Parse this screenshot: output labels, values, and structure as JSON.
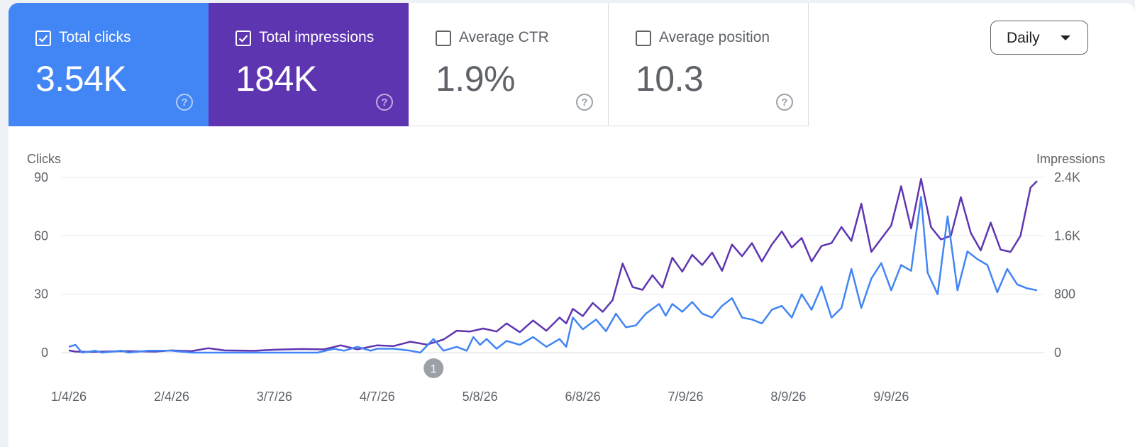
{
  "cards": [
    {
      "label": "Total clicks",
      "value": "3.54K",
      "checked": true,
      "color": "#4285f4"
    },
    {
      "label": "Total impressions",
      "value": "184K",
      "checked": true,
      "color": "#5e35b1"
    },
    {
      "label": "Average CTR",
      "value": "1.9%",
      "checked": false
    },
    {
      "label": "Average position",
      "value": "10.3",
      "checked": false
    }
  ],
  "help_glyph": "?",
  "dropdown": {
    "label": "Daily"
  },
  "chart_data": {
    "type": "line",
    "start_date": "2026-01-04",
    "x_tick_labels": [
      "1/4/26",
      "2/4/26",
      "3/7/26",
      "4/7/26",
      "5/8/26",
      "6/8/26",
      "7/9/26",
      "8/9/26",
      "9/9/26"
    ],
    "x_tick_dates": [
      "2026-01-04",
      "2026-02-04",
      "2026-03-07",
      "2026-04-07",
      "2026-05-08",
      "2026-06-08",
      "2026-07-09",
      "2026-08-09",
      "2026-09-09"
    ],
    "left_axis": {
      "label": "Clicks",
      "range": [
        0,
        90
      ],
      "ticks": [
        0,
        30,
        60,
        90
      ],
      "tick_labels": [
        "0",
        "30",
        "60",
        "90"
      ]
    },
    "right_axis": {
      "label": "Impressions",
      "range": [
        0,
        2400
      ],
      "ticks": [
        0,
        800,
        1600,
        2400
      ],
      "tick_labels": [
        "0",
        "800",
        "1.6K",
        "2.4K"
      ]
    },
    "grid": true,
    "annotations": [
      {
        "date": "2026-04-24",
        "label": "1"
      }
    ],
    "series": [
      {
        "axis": "left",
        "color": "#4285f4",
        "points": [
          [
            "2026-01-04",
            3
          ],
          [
            "2026-01-06",
            4
          ],
          [
            "2026-01-08",
            0
          ],
          [
            "2026-01-12",
            1
          ],
          [
            "2026-01-14",
            0
          ],
          [
            "2026-01-20",
            1
          ],
          [
            "2026-01-22",
            0
          ],
          [
            "2026-01-28",
            1
          ],
          [
            "2026-02-04",
            1
          ],
          [
            "2026-02-10",
            0
          ],
          [
            "2026-03-07",
            0
          ],
          [
            "2026-03-20",
            0
          ],
          [
            "2026-03-25",
            2
          ],
          [
            "2026-03-28",
            1
          ],
          [
            "2026-04-01",
            3
          ],
          [
            "2026-04-05",
            1
          ],
          [
            "2026-04-07",
            2
          ],
          [
            "2026-04-12",
            2
          ],
          [
            "2026-04-17",
            1
          ],
          [
            "2026-04-20",
            0
          ],
          [
            "2026-04-24",
            7
          ],
          [
            "2026-04-27",
            1
          ],
          [
            "2026-05-01",
            3
          ],
          [
            "2026-05-04",
            1
          ],
          [
            "2026-05-06",
            8
          ],
          [
            "2026-05-08",
            4
          ],
          [
            "2026-05-10",
            7
          ],
          [
            "2026-05-13",
            2
          ],
          [
            "2026-05-16",
            6
          ],
          [
            "2026-05-20",
            4
          ],
          [
            "2026-05-24",
            8
          ],
          [
            "2026-05-28",
            3
          ],
          [
            "2026-06-01",
            7
          ],
          [
            "2026-06-03",
            3
          ],
          [
            "2026-06-05",
            18
          ],
          [
            "2026-06-08",
            12
          ],
          [
            "2026-06-12",
            17
          ],
          [
            "2026-06-15",
            11
          ],
          [
            "2026-06-18",
            20
          ],
          [
            "2026-06-21",
            13
          ],
          [
            "2026-06-24",
            14
          ],
          [
            "2026-06-27",
            20
          ],
          [
            "2026-07-01",
            25
          ],
          [
            "2026-07-03",
            19
          ],
          [
            "2026-07-05",
            25
          ],
          [
            "2026-07-08",
            21
          ],
          [
            "2026-07-11",
            26
          ],
          [
            "2026-07-14",
            20
          ],
          [
            "2026-07-17",
            18
          ],
          [
            "2026-07-20",
            24
          ],
          [
            "2026-07-23",
            28
          ],
          [
            "2026-07-26",
            18
          ],
          [
            "2026-07-29",
            17
          ],
          [
            "2026-08-01",
            15
          ],
          [
            "2026-08-04",
            22
          ],
          [
            "2026-08-07",
            24
          ],
          [
            "2026-08-10",
            18
          ],
          [
            "2026-08-13",
            30
          ],
          [
            "2026-08-16",
            22
          ],
          [
            "2026-08-19",
            34
          ],
          [
            "2026-08-22",
            18
          ],
          [
            "2026-08-25",
            23
          ],
          [
            "2026-08-28",
            43
          ],
          [
            "2026-08-31",
            23
          ],
          [
            "2026-09-03",
            38
          ],
          [
            "2026-09-06",
            46
          ],
          [
            "2026-09-09",
            32
          ],
          [
            "2026-09-12",
            45
          ],
          [
            "2026-09-15",
            42
          ],
          [
            "2026-09-18",
            80
          ],
          [
            "2026-09-20",
            41
          ],
          [
            "2026-09-23",
            30
          ],
          [
            "2026-09-26",
            70
          ],
          [
            "2026-09-29",
            32
          ],
          [
            "2026-10-02",
            52
          ],
          [
            "2026-10-05",
            48
          ],
          [
            "2026-10-08",
            45
          ],
          [
            "2026-10-11",
            31
          ],
          [
            "2026-10-14",
            43
          ],
          [
            "2026-10-17",
            35
          ],
          [
            "2026-10-20",
            33
          ],
          [
            "2026-10-23",
            32
          ]
        ]
      },
      {
        "axis": "right",
        "color": "#5e35b1",
        "points": [
          [
            "2026-01-04",
            30
          ],
          [
            "2026-01-06",
            15
          ],
          [
            "2026-01-10",
            10
          ],
          [
            "2026-01-20",
            20
          ],
          [
            "2026-01-30",
            15
          ],
          [
            "2026-02-04",
            30
          ],
          [
            "2026-02-10",
            20
          ],
          [
            "2026-02-15",
            60
          ],
          [
            "2026-02-20",
            30
          ],
          [
            "2026-03-01",
            25
          ],
          [
            "2026-03-07",
            40
          ],
          [
            "2026-03-15",
            50
          ],
          [
            "2026-03-22",
            45
          ],
          [
            "2026-03-27",
            100
          ],
          [
            "2026-04-01",
            45
          ],
          [
            "2026-04-07",
            100
          ],
          [
            "2026-04-12",
            90
          ],
          [
            "2026-04-17",
            150
          ],
          [
            "2026-04-22",
            110
          ],
          [
            "2026-04-27",
            180
          ],
          [
            "2026-05-01",
            300
          ],
          [
            "2026-05-05",
            290
          ],
          [
            "2026-05-09",
            330
          ],
          [
            "2026-05-13",
            290
          ],
          [
            "2026-05-16",
            400
          ],
          [
            "2026-05-20",
            280
          ],
          [
            "2026-05-24",
            440
          ],
          [
            "2026-05-28",
            300
          ],
          [
            "2026-06-01",
            480
          ],
          [
            "2026-06-03",
            400
          ],
          [
            "2026-06-05",
            600
          ],
          [
            "2026-06-08",
            500
          ],
          [
            "2026-06-11",
            680
          ],
          [
            "2026-06-14",
            560
          ],
          [
            "2026-06-17",
            720
          ],
          [
            "2026-06-20",
            1220
          ],
          [
            "2026-06-23",
            900
          ],
          [
            "2026-06-26",
            860
          ],
          [
            "2026-06-29",
            1060
          ],
          [
            "2026-07-02",
            890
          ],
          [
            "2026-07-05",
            1300
          ],
          [
            "2026-07-08",
            1110
          ],
          [
            "2026-07-11",
            1340
          ],
          [
            "2026-07-14",
            1200
          ],
          [
            "2026-07-17",
            1370
          ],
          [
            "2026-07-20",
            1120
          ],
          [
            "2026-07-23",
            1480
          ],
          [
            "2026-07-26",
            1320
          ],
          [
            "2026-07-29",
            1500
          ],
          [
            "2026-08-01",
            1250
          ],
          [
            "2026-08-04",
            1480
          ],
          [
            "2026-08-07",
            1660
          ],
          [
            "2026-08-10",
            1440
          ],
          [
            "2026-08-13",
            1570
          ],
          [
            "2026-08-16",
            1250
          ],
          [
            "2026-08-19",
            1460
          ],
          [
            "2026-08-22",
            1500
          ],
          [
            "2026-08-25",
            1720
          ],
          [
            "2026-08-28",
            1530
          ],
          [
            "2026-08-31",
            2040
          ],
          [
            "2026-09-03",
            1380
          ],
          [
            "2026-09-06",
            1560
          ],
          [
            "2026-09-09",
            1740
          ],
          [
            "2026-09-12",
            2280
          ],
          [
            "2026-09-15",
            1700
          ],
          [
            "2026-09-18",
            2380
          ],
          [
            "2026-09-21",
            1720
          ],
          [
            "2026-09-24",
            1550
          ],
          [
            "2026-09-27",
            1600
          ],
          [
            "2026-09-30",
            2130
          ],
          [
            "2026-10-03",
            1640
          ],
          [
            "2026-10-06",
            1400
          ],
          [
            "2026-10-09",
            1780
          ],
          [
            "2026-10-12",
            1410
          ],
          [
            "2026-10-15",
            1380
          ],
          [
            "2026-10-18",
            1600
          ],
          [
            "2026-10-21",
            2260
          ],
          [
            "2026-10-23",
            2350
          ]
        ]
      }
    ]
  }
}
